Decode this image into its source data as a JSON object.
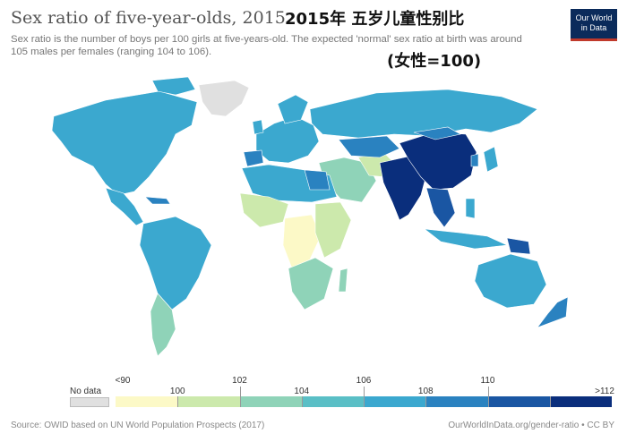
{
  "header": {
    "title": "Sex ratio of five-year-olds, 2015",
    "title_cn": "2015年 五岁儿童性别比",
    "subtitle_line1": "Sex ratio is the number of boys per 100 girls at five-years-old. The expected 'normal' sex ratio at birth was around",
    "subtitle_line2": "105 males per females (ranging 104 to 106).",
    "annotation": "(女性=100)"
  },
  "logo": {
    "line1": "Our World",
    "line2": "in Data"
  },
  "legend": {
    "nodata_label": "No data",
    "nodata_color": "#e0e0e0",
    "bins": [
      {
        "label": "<90",
        "color": "#fcf9c7"
      },
      {
        "label": "100",
        "color": "#cce9ac"
      },
      {
        "label": "102",
        "color": "#8fd3b8"
      },
      {
        "label": "104",
        "color": "#5abfc6"
      },
      {
        "label": "106",
        "color": "#3ba8cf"
      },
      {
        "label": "108",
        "color": "#2a82c0"
      },
      {
        "label": "110",
        "color": "#1a56a3"
      },
      {
        "label": ">112",
        "color": "#0a2e7c"
      }
    ]
  },
  "map_colors": {
    "ocean": "#ffffff",
    "land_default": "#5abfc6",
    "highest": "#0a2e7c",
    "high": "#1a56a3",
    "mid_high": "#2a82c0",
    "mid": "#3ba8cf",
    "low_mid": "#8fd3b8",
    "low": "#cce9ac",
    "lowest": "#fcf9c7",
    "no_data": "#e0e0e0"
  },
  "footer": {
    "source": "Source: OWID based on UN World Population Prospects (2017)",
    "credit": "OurWorldInData.org/gender-ratio • CC BY"
  }
}
